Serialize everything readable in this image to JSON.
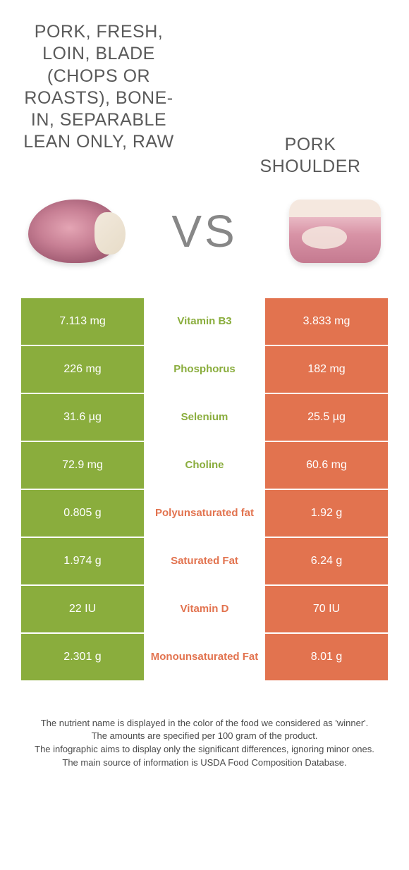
{
  "colors": {
    "green": "#8aad3d",
    "green_text": "#8aad3d",
    "orange": "#e2734f",
    "orange_text": "#e2734f"
  },
  "header": {
    "left_title": "Pork, fresh, loin, blade (chops or roasts), bone-in, separable lean only, raw",
    "right_title": "Pork shoulder",
    "vs": "VS"
  },
  "rows": [
    {
      "nutrient": "Vitamin B3",
      "left": "7.113 mg",
      "right": "3.833 mg",
      "winner": "left"
    },
    {
      "nutrient": "Phosphorus",
      "left": "226 mg",
      "right": "182 mg",
      "winner": "left"
    },
    {
      "nutrient": "Selenium",
      "left": "31.6 µg",
      "right": "25.5 µg",
      "winner": "left"
    },
    {
      "nutrient": "Choline",
      "left": "72.9 mg",
      "right": "60.6 mg",
      "winner": "left"
    },
    {
      "nutrient": "Polyunsaturated fat",
      "left": "0.805 g",
      "right": "1.92 g",
      "winner": "right"
    },
    {
      "nutrient": "Saturated Fat",
      "left": "1.974 g",
      "right": "6.24 g",
      "winner": "right"
    },
    {
      "nutrient": "Vitamin D",
      "left": "22 IU",
      "right": "70 IU",
      "winner": "right"
    },
    {
      "nutrient": "Monounsaturated Fat",
      "left": "2.301 g",
      "right": "8.01 g",
      "winner": "right"
    }
  ],
  "footer": {
    "l1": "The nutrient name is displayed in the color of the food we considered as 'winner'.",
    "l2": "The amounts are specified per 100 gram of the product.",
    "l3": "The infographic aims to display only the significant differences, ignoring minor ones.",
    "l4": "The main source of information is USDA Food Composition Database."
  }
}
